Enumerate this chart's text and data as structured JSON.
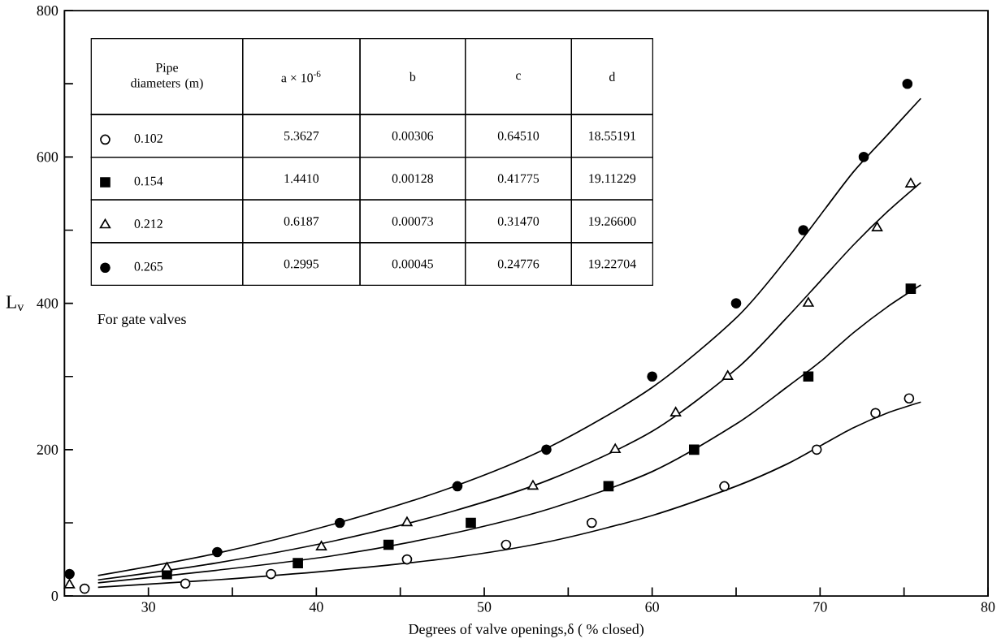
{
  "chart_data": {
    "type": "scatter",
    "xlabel": "Degrees of valve openings,δ ( % closed)",
    "ylabel": "L$_{v}$",
    "legend_title": "Pipe diameters (m)",
    "legend": "top left",
    "xlim": [
      25,
      80
    ],
    "xticks": [
      30,
      {
        "value": 35,
        "label": null
      },
      40,
      {
        "value": 45,
        "label": null
      },
      50,
      {
        "value": 55,
        "label": null
      },
      60,
      {
        "value": 65,
        "label": null
      },
      70,
      {
        "value": 75,
        "label": null
      },
      80
    ],
    "ylim": [
      0,
      800
    ],
    "yticks": [
      0,
      {
        "value": 100,
        "label": null
      },
      200,
      {
        "value": 300,
        "label": null
      },
      400,
      {
        "value": 500,
        "label": null
      },
      600,
      {
        "value": 700,
        "label": null
      },
      800
    ],
    "annotations": [
      "a × 10$^{-6}$",
      "b",
      "c",
      "d",
      "5.3627",
      "0.00306",
      "0.64510",
      "18.55191",
      "1.4410",
      "0.00128",
      "0.41775",
      "19.11229",
      "0.6187",
      "0.00073",
      "0.31470",
      "19.26600",
      "0.2995",
      "0.00045",
      "0.24776",
      "19.22704",
      "For gate valves"
    ],
    "series": [
      {
        "name": "0.102",
        "marker": "circle",
        "color": "#ffffff",
        "x": [
          26.2,
          32.2,
          37.3,
          45.4,
          51.3,
          56.4,
          64.3,
          69.8,
          73.3,
          75.3
        ],
        "values": [
          10,
          17,
          30,
          50,
          70,
          100,
          150,
          200,
          250,
          270
        ]
      },
      {
        "name": "0.154",
        "marker": "square",
        "color": "#000000",
        "x": [
          31.1,
          38.9,
          44.3,
          49.2,
          57.4,
          62.5,
          69.3,
          75.4
        ],
        "values": [
          30,
          45,
          70,
          100,
          150,
          200,
          300,
          420
        ]
      },
      {
        "name": "0.212",
        "marker": "triangle",
        "color": "#ffffff",
        "x": [
          25.3,
          31.1,
          40.3,
          45.4,
          52.9,
          57.8,
          61.4,
          64.5,
          69.3,
          73.4,
          75.4
        ],
        "values": [
          15,
          38,
          67,
          100,
          150,
          200,
          250,
          300,
          400,
          503,
          563
        ]
      },
      {
        "name": "0.265",
        "marker": "circle",
        "color": "#000000",
        "x": [
          25.3,
          34.1,
          41.4,
          48.4,
          53.7,
          60.0,
          65.0,
          69.0,
          72.6,
          75.2
        ],
        "values": [
          30,
          60,
          100,
          150,
          200,
          300,
          400,
          500,
          600,
          700
        ]
      },
      {
        "type": "line",
        "color": "#000000",
        "x": [
          27,
          34,
          41,
          48,
          54,
          60,
          65,
          68,
          70,
          72,
          74,
          76
        ],
        "values": [
          12,
          22,
          35,
          52,
          75,
          110,
          150,
          180,
          205,
          230,
          250,
          265
        ]
      },
      {
        "type": "line",
        "color": "#000000",
        "x": [
          27,
          34,
          41,
          48,
          54,
          60,
          65,
          68,
          70,
          72,
          74,
          76
        ],
        "values": [
          18,
          35,
          55,
          85,
          120,
          170,
          235,
          285,
          320,
          360,
          395,
          425
        ]
      },
      {
        "type": "line",
        "color": "#000000",
        "x": [
          27,
          34,
          41,
          48,
          54,
          60,
          65,
          68,
          70,
          72,
          74,
          76
        ],
        "values": [
          22,
          45,
          75,
          115,
          160,
          225,
          310,
          380,
          430,
          480,
          525,
          565
        ]
      },
      {
        "type": "line",
        "color": "#000000",
        "x": [
          27,
          34,
          41,
          48,
          54,
          60,
          65,
          68,
          70,
          72,
          74,
          76
        ],
        "values": [
          28,
          58,
          98,
          148,
          205,
          285,
          380,
          460,
          520,
          580,
          630,
          680
        ]
      }
    ]
  }
}
